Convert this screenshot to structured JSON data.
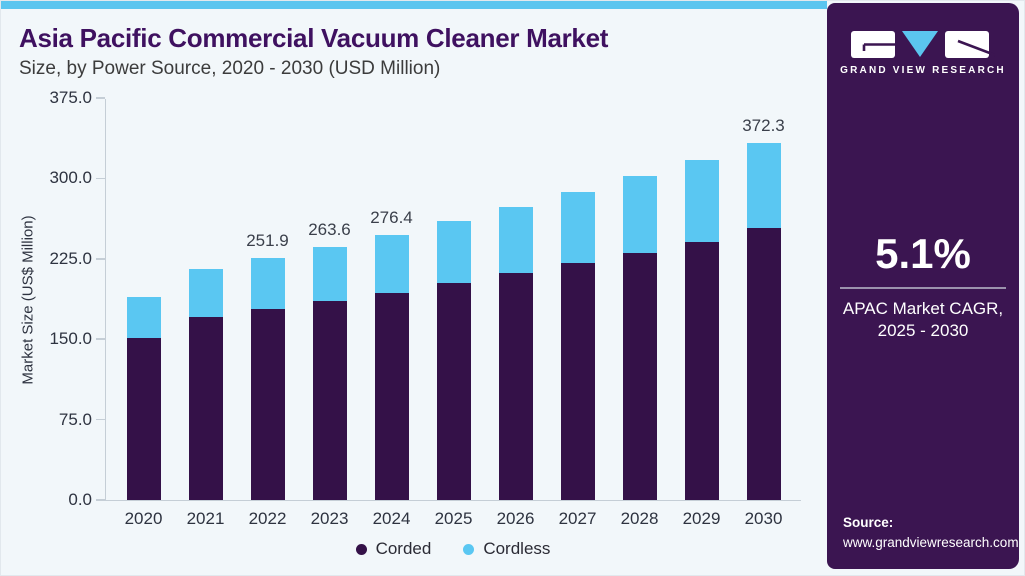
{
  "header": {
    "title": "Asia Pacific Commercial Vacuum Cleaner Market",
    "subtitle": "Size, by Power Source, 2020 - 2030 (USD Million)"
  },
  "sidebar": {
    "logo_text": "GRAND VIEW RESEARCH",
    "cagr_value": "5.1%",
    "cagr_label_line1": "APAC Market CAGR,",
    "cagr_label_line2": "2025 - 2030",
    "source_label": "Source:",
    "source_url": "www.grandviewresearch.com",
    "bg_color": "#3b1551",
    "accent_color": "#5bc5ef"
  },
  "chart_data": {
    "type": "bar",
    "stacked": true,
    "title": "Asia Pacific Commercial Vacuum Cleaner Market Size, by Power Source, 2020 - 2030 (USD Million)",
    "xlabel": "",
    "ylabel": "Market Size (US$ Million)",
    "ylim": [
      0,
      375
    ],
    "grid": false,
    "legend_position": "bottom",
    "categories": [
      "2020",
      "2021",
      "2022",
      "2023",
      "2024",
      "2025",
      "2026",
      "2027",
      "2028",
      "2029",
      "2030"
    ],
    "series": [
      {
        "name": "Corded",
        "color": "#341148",
        "values": [
          169.1,
          190.9,
          199.0,
          207.6,
          215.9,
          226.4,
          236.5,
          246.6,
          257.0,
          269.1,
          283.0
        ]
      },
      {
        "name": "Cordless",
        "color": "#5ac7f2",
        "values": [
          42.7,
          50.0,
          52.9,
          56.0,
          60.5,
          64.1,
          68.8,
          74.3,
          80.3,
          85.4,
          89.3
        ]
      }
    ],
    "totals": [
      211.8,
      240.9,
      251.9,
      263.6,
      276.4,
      290.5,
      305.3,
      320.9,
      337.3,
      354.5,
      372.3
    ],
    "total_labels": [
      "",
      "",
      "251.9",
      "263.6",
      "276.4",
      "",
      "",
      "",
      "",
      "",
      "372.3"
    ],
    "yticks": [
      0,
      75,
      150,
      225,
      300,
      375
    ],
    "ytick_labels": [
      "0.0",
      "75.0",
      "150.0",
      "225.0",
      "300.0",
      "375.0"
    ]
  }
}
